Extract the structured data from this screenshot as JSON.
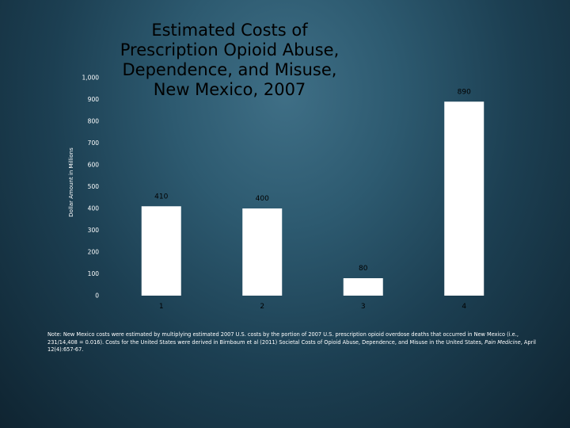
{
  "chart_data": {
    "type": "bar",
    "title": "Estimated Costs of Prescription Opioid Abuse, Dependence, and Misuse, New Mexico, 2007",
    "ylabel": "Dollar Amount in Millions",
    "xlabel": "",
    "categories": [
      "1",
      "2",
      "3",
      "4"
    ],
    "values": [
      410,
      400,
      80,
      890
    ],
    "data_labels": [
      "410",
      "400",
      "80",
      "890"
    ],
    "ylim": [
      0,
      1000
    ],
    "yticks": [
      "0",
      "100",
      "200",
      "300",
      "400",
      "500",
      "600",
      "700",
      "800",
      "900",
      "1,000"
    ],
    "grid": false,
    "legend": "none",
    "bar_color": "#ffffff"
  },
  "note": {
    "part1": "Note: New Mexico costs were estimated by multiplying estimated 2007 U.S. costs by the portion of 2007 U.S. prescription opioid overdose deaths that occurred in New Mexico (i.e., 231/14,408 = 0.016). Costs for the United States were derived in Birnbaum et al (2011) Societal Costs of Opioid Abuse, Dependence, and Misuse in the United States,",
    "journal": "Pain Medicine",
    "part2": ", April 12(4):657-67."
  }
}
